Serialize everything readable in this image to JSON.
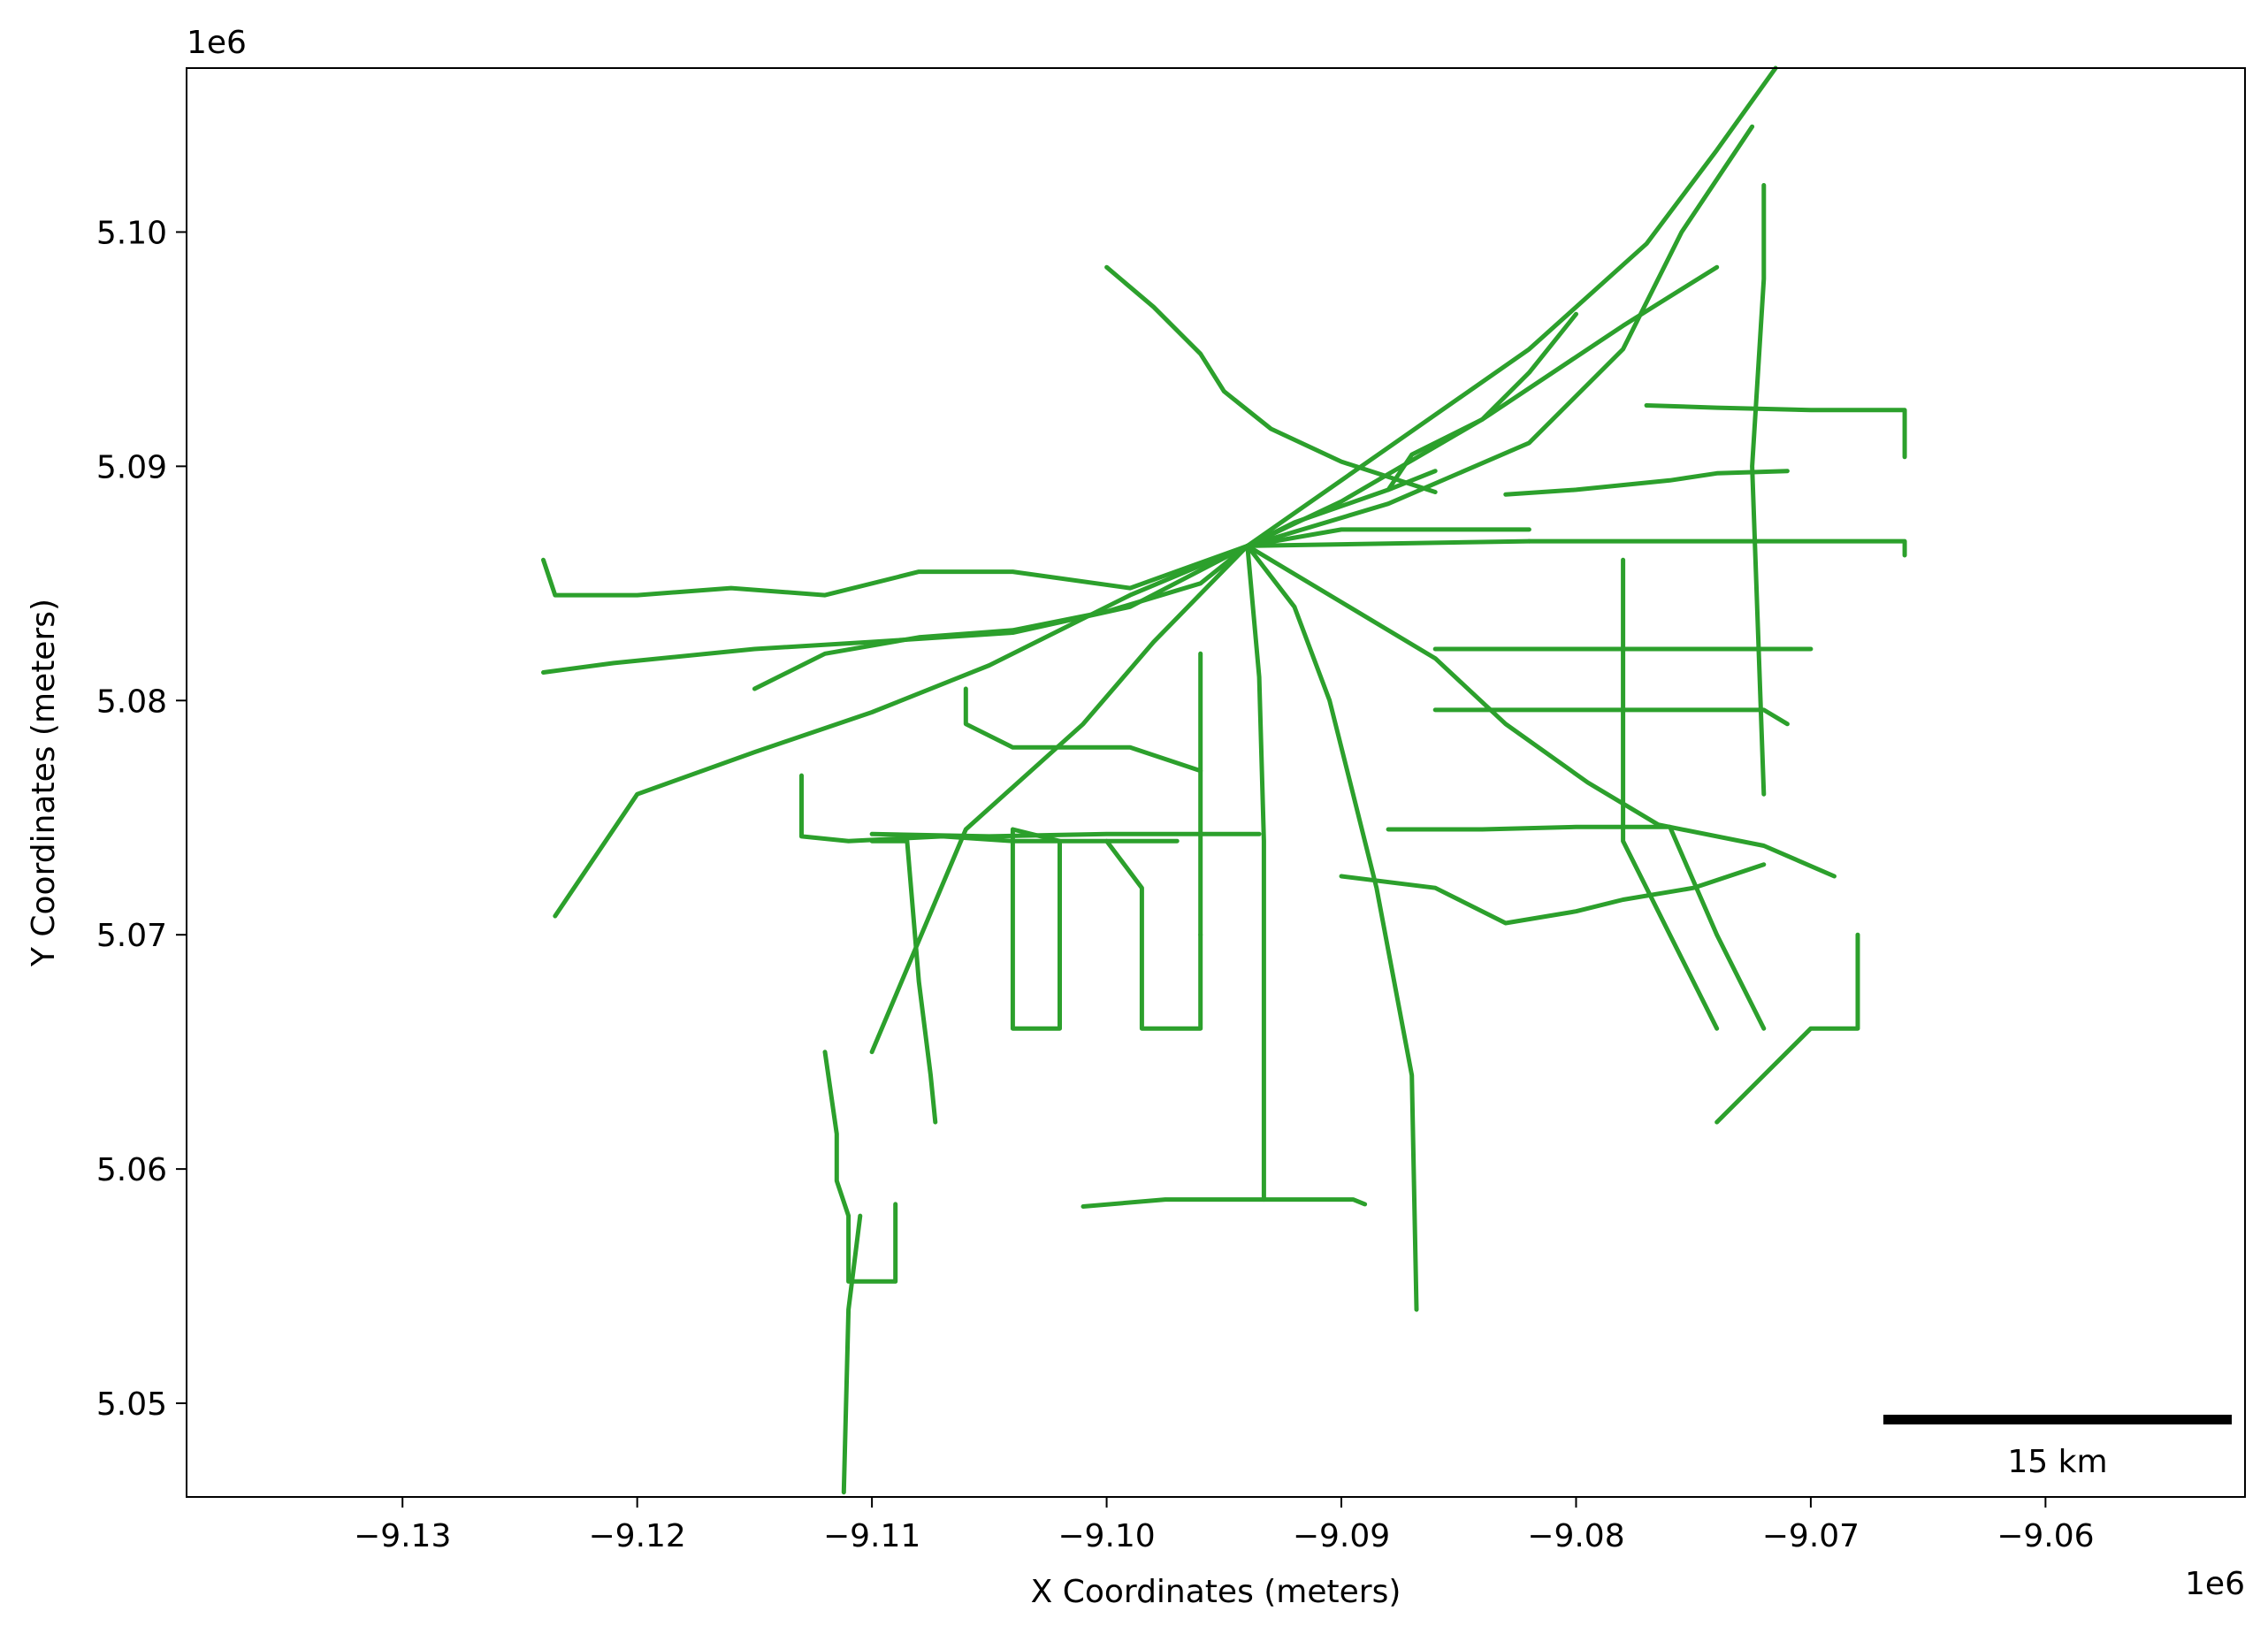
{
  "chart_data": {
    "type": "map",
    "title": "",
    "xlabel": "X Coordinates (meters)",
    "ylabel": "Y Coordinates (meters)",
    "x_offset_label": "1e6",
    "y_offset_label": "1e6",
    "xlim": [
      -9.1392,
      -9.0515
    ],
    "ylim": [
      5.046,
      5.107
    ],
    "xticks": [
      -9.13,
      -9.12,
      -9.11,
      -9.1,
      -9.09,
      -9.08,
      -9.07,
      -9.06
    ],
    "xtick_labels": [
      "−9.13",
      "−9.12",
      "−9.11",
      "−9.10",
      "−9.09",
      "−9.08",
      "−9.07",
      "−9.06"
    ],
    "yticks": [
      5.05,
      5.06,
      5.07,
      5.08,
      5.09,
      5.1
    ],
    "ytick_labels": [
      "5.05",
      "5.06",
      "5.07",
      "5.08",
      "5.09",
      "5.10"
    ],
    "grid": false,
    "line_color": "#2ca02c",
    "scalebar": {
      "label": "15 km",
      "color": "#000000",
      "placement": "bottom-right"
    },
    "series": [
      {
        "x": [
          -9.086,
          -9.088,
          -9.092,
          -9.094
        ],
        "y": [
          5.0898,
          5.089,
          5.0876,
          5.0866
        ]
      },
      {
        "x": [
          -9.094,
          -9.092,
          -9.087,
          -9.082,
          -9.077,
          -9.074,
          -9.0715
        ],
        "y": [
          5.0866,
          5.088,
          5.0915,
          5.095,
          5.0995,
          5.1035,
          5.107
        ]
      },
      {
        "x": [
          -9.094,
          -9.09,
          -9.084,
          -9.078,
          -9.074
        ],
        "y": [
          5.0866,
          5.0885,
          5.092,
          5.096,
          5.0985
        ]
      },
      {
        "x": [
          -9.094,
          -9.088,
          -9.082,
          -9.078,
          -9.0755,
          -9.0725
        ],
        "y": [
          5.0866,
          5.0884,
          5.091,
          5.095,
          5.1,
          5.1045
        ]
      },
      {
        "x": [
          -9.094,
          -9.09,
          -9.086,
          -9.082
        ],
        "y": [
          5.0866,
          5.0873,
          5.0873,
          5.0873
        ]
      },
      {
        "x": [
          -9.094,
          -9.088,
          -9.082
        ],
        "y": [
          5.0866,
          5.0867,
          5.0868
        ]
      },
      {
        "x": [
          -9.082,
          -9.076,
          -9.071,
          -9.066,
          -9.066
        ],
        "y": [
          5.0868,
          5.0868,
          5.0868,
          5.0868,
          5.0862
        ]
      },
      {
        "x": [
          -9.094,
          -9.09,
          -9.086,
          -9.083,
          -9.0795,
          -9.0765,
          -9.072,
          -9.069
        ],
        "y": [
          5.0866,
          5.0842,
          5.0818,
          5.079,
          5.0765,
          5.0747,
          5.0738,
          5.0725
        ]
      },
      {
        "x": [
          -9.094,
          -9.092,
          -9.0905,
          -9.0895,
          -9.0885,
          -9.087,
          -9.0868
        ],
        "y": [
          5.0866,
          5.084,
          5.08,
          5.076,
          5.072,
          5.064,
          5.054
        ]
      },
      {
        "x": [
          -9.094,
          -9.0935,
          -9.0933,
          -9.0933
        ],
        "y": [
          5.0866,
          5.081,
          5.074,
          5.0587
        ]
      },
      {
        "x": [
          -9.101,
          -9.0975,
          -9.0935,
          -9.0895,
          -9.089
        ],
        "y": [
          5.0584,
          5.0587,
          5.0587,
          5.0587,
          5.0585
        ]
      },
      {
        "x": [
          -9.094,
          -9.098,
          -9.101,
          -9.106,
          -9.11
        ],
        "y": [
          5.0866,
          5.0825,
          5.079,
          5.0745,
          5.065
        ]
      },
      {
        "x": [
          -9.094,
          -9.096,
          -9.1,
          -9.104,
          -9.108,
          -9.112,
          -9.115
        ],
        "y": [
          5.0866,
          5.085,
          5.0838,
          5.083,
          5.0827,
          5.082,
          5.0805
        ]
      },
      {
        "x": [
          -9.094,
          -9.099,
          -9.105,
          -9.11,
          -9.115,
          -9.12,
          -9.1235
        ],
        "y": [
          5.0866,
          5.0845,
          5.0815,
          5.0795,
          5.0778,
          5.076,
          5.0708
        ]
      },
      {
        "x": [
          -9.094,
          -9.099,
          -9.104,
          -9.11,
          -9.115,
          -9.121,
          -9.124
        ],
        "y": [
          5.0866,
          5.084,
          5.0829,
          5.0825,
          5.0822,
          5.0816,
          5.0812
        ]
      },
      {
        "x": [
          -9.094,
          -9.099,
          -9.104,
          -9.108,
          -9.112,
          -9.116,
          -9.12,
          -9.1235,
          -9.124
        ],
        "y": [
          5.0866,
          5.0848,
          5.0855,
          5.0855,
          5.0845,
          5.0848,
          5.0845,
          5.0845,
          5.086
        ]
      },
      {
        "x": [
          -9.11,
          -9.1085,
          -9.108,
          -9.1075,
          -9.1073
        ],
        "y": [
          5.074,
          5.074,
          5.068,
          5.064,
          5.062
        ]
      },
      {
        "x": [
          -9.112,
          -9.1115,
          -9.1115,
          -9.111,
          -9.111,
          -9.109,
          -9.109
        ],
        "y": [
          5.065,
          5.0615,
          5.0595,
          5.058,
          5.0552,
          5.0552,
          5.0585
        ]
      },
      {
        "x": [
          -9.1105,
          -9.111,
          -9.1112
        ],
        "y": [
          5.058,
          5.054,
          5.0462
        ]
      },
      {
        "x": [
          -9.11,
          -9.105,
          -9.1,
          -9.098,
          -9.0935
        ],
        "y": [
          5.0743,
          5.0742,
          5.0743,
          5.0743,
          5.0743
        ]
      },
      {
        "x": [
          -9.104,
          -9.104,
          -9.102,
          -9.102,
          -9.104
        ],
        "y": [
          5.0745,
          5.066,
          5.066,
          5.074,
          5.0745
        ]
      },
      {
        "x": [
          -9.1,
          -9.0985,
          -9.0985,
          -9.096,
          -9.096
        ],
        "y": [
          5.074,
          5.072,
          5.066,
          5.066,
          5.07
        ]
      },
      {
        "x": [
          -9.088,
          -9.084,
          -9.08,
          -9.076,
          -9.074,
          -9.072
        ],
        "y": [
          5.0745,
          5.0745,
          5.0746,
          5.0746,
          5.07,
          5.066
        ]
      },
      {
        "x": [
          -9.09,
          -9.086,
          -9.083,
          -9.08,
          -9.078,
          -9.075,
          -9.072
        ],
        "y": [
          5.0725,
          5.072,
          5.0705,
          5.071,
          5.0715,
          5.072,
          5.073
        ]
      },
      {
        "x": [
          -9.078,
          -9.078,
          -9.078,
          -9.076,
          -9.074
        ],
        "y": [
          5.086,
          5.08,
          5.074,
          5.07,
          5.066
        ]
      },
      {
        "x": [
          -9.086,
          -9.076,
          -9.07
        ],
        "y": [
          5.0822,
          5.0822,
          5.0822
        ]
      },
      {
        "x": [
          -9.086,
          -9.084,
          -9.078,
          -9.072,
          -9.071
        ],
        "y": [
          5.0796,
          5.0796,
          5.0796,
          5.0796,
          5.079
        ]
      },
      {
        "x": [
          -9.088,
          -9.087,
          -9.084,
          -9.082,
          -9.08
        ],
        "y": [
          5.089,
          5.0905,
          5.092,
          5.094,
          5.0965
        ]
      },
      {
        "x": [
          -9.077,
          -9.074,
          -9.07,
          -9.066,
          -9.066
        ],
        "y": [
          5.0926,
          5.0925,
          5.0924,
          5.0924,
          5.0904
        ]
      },
      {
        "x": [
          -9.083,
          -9.08,
          -9.076,
          -9.074,
          -9.071
        ],
        "y": [
          5.0888,
          5.089,
          5.0894,
          5.0897,
          5.0898
        ]
      },
      {
        "x": [
          -9.072,
          -9.072,
          -9.0725,
          -9.072
        ],
        "y": [
          5.102,
          5.098,
          5.09,
          5.076
        ]
      },
      {
        "x": [
          -9.068,
          -9.068,
          -9.07,
          -9.072,
          -9.074
        ],
        "y": [
          5.07,
          5.066,
          5.066,
          5.064,
          5.062
        ]
      },
      {
        "x": [
          -9.086,
          -9.09,
          -9.093,
          -9.095,
          -9.096,
          -9.098,
          -9.1
        ],
        "y": [
          5.0889,
          5.0902,
          5.0916,
          5.0932,
          5.0948,
          5.0968,
          5.0985
        ]
      },
      {
        "x": [
          -9.096,
          -9.096,
          -9.096,
          -9.096
        ],
        "y": [
          5.082,
          5.078,
          5.074,
          5.07
        ]
      },
      {
        "x": [
          -9.106,
          -9.106,
          -9.104,
          -9.099,
          -9.096
        ],
        "y": [
          5.0805,
          5.079,
          5.078,
          5.078,
          5.077
        ]
      },
      {
        "x": [
          -9.113,
          -9.113,
          -9.111,
          -9.107,
          -9.104,
          -9.1,
          -9.097
        ],
        "y": [
          5.0768,
          5.0742,
          5.074,
          5.0742,
          5.074,
          5.074,
          5.074
        ]
      }
    ]
  }
}
